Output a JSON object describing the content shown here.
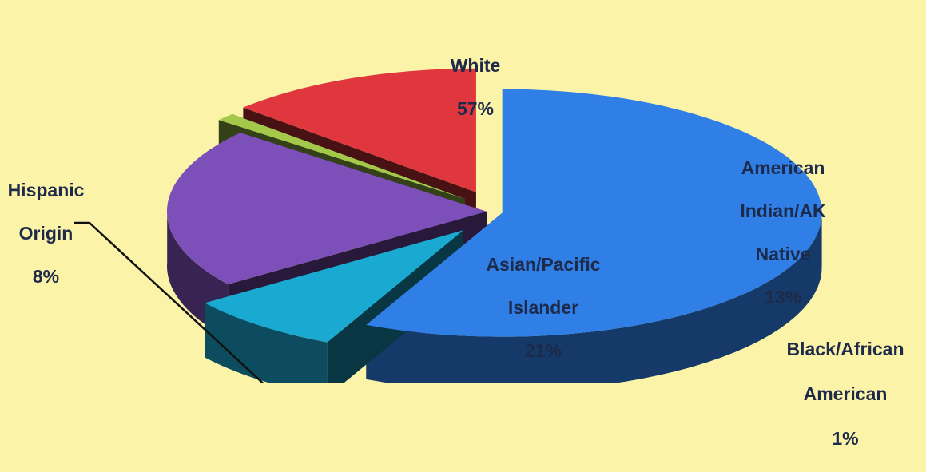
{
  "chart_data": {
    "type": "pie",
    "style": "3d-exploded",
    "title": "",
    "categories": [
      "White",
      "Hispanic Origin",
      "Asian/Pacific Islander",
      "Black/African American",
      "American Indian/AK Native"
    ],
    "values": [
      57,
      8,
      21,
      1,
      13
    ],
    "unit": "%",
    "slices": [
      {
        "name": "White",
        "value": 57,
        "label_lines": [
          "White",
          "57%"
        ],
        "color": "#2f7fe6"
      },
      {
        "name": "Hispanic Origin",
        "value": 8,
        "label_lines": [
          "Hispanic",
          "Origin",
          "8%"
        ],
        "color": "#1aa9d1"
      },
      {
        "name": "Asian/Pacific Islander",
        "value": 21,
        "label_lines": [
          "Asian/Pacific",
          "Islander",
          "21%"
        ],
        "color": "#7d4fb8"
      },
      {
        "name": "Black/African American",
        "value": 1,
        "label_lines": [
          "Black/African",
          "American",
          "1%"
        ],
        "color": "#a4c84a"
      },
      {
        "name": "American Indian/AK Native",
        "value": 13,
        "label_lines": [
          "American",
          "Indian/AK",
          "Native",
          "13%"
        ],
        "color": "#e0373f"
      }
    ],
    "background_color": "#fbf3a8",
    "label_color": "#1d2a4a"
  }
}
